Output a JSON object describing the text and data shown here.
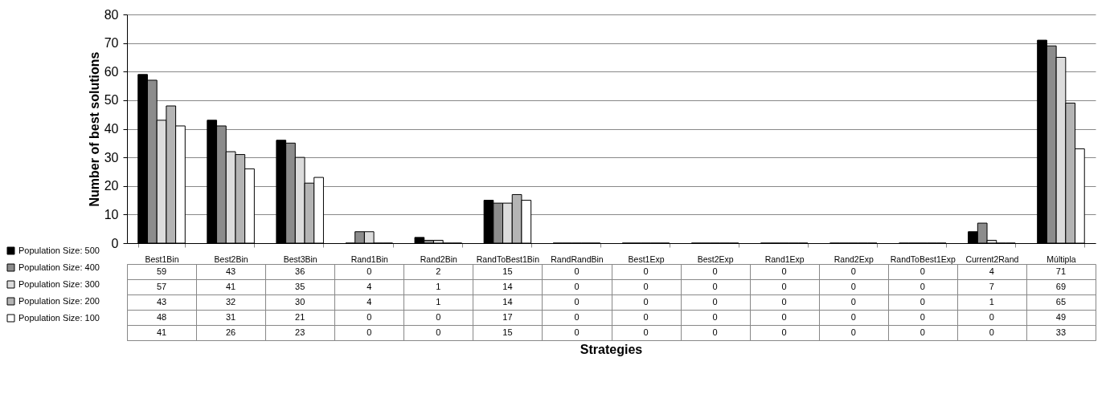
{
  "chart_data": {
    "type": "bar",
    "annotations": [
      "Strategies"
    ],
    "ylabel": "Number of best solutions",
    "categories": [
      "Best1Bin",
      "Best2Bin",
      "Best3Bin",
      "Rand1Bin",
      "Rand2Bin",
      "RandToBest1Bin",
      "RandRandBin",
      "Best1Exp",
      "Best2Exp",
      "Rand1Exp",
      "Rand2Exp",
      "RandToBest1Exp",
      "Current2Rand",
      "Múltipla"
    ],
    "series": [
      {
        "name": "Population Size: 500",
        "color": "#000000",
        "values": [
          59,
          43,
          36,
          0,
          2,
          15,
          0,
          0,
          0,
          0,
          0,
          0,
          4,
          71
        ]
      },
      {
        "name": "Population Size: 400",
        "color": "#8c8c8c",
        "values": [
          57,
          41,
          35,
          4,
          1,
          14,
          0,
          0,
          0,
          0,
          0,
          0,
          7,
          69
        ]
      },
      {
        "name": "Population Size: 300",
        "color": "#dcdcdc",
        "values": [
          43,
          32,
          30,
          4,
          1,
          14,
          0,
          0,
          0,
          0,
          0,
          0,
          1,
          65
        ]
      },
      {
        "name": "Population Size: 200",
        "color": "#b4b4b4",
        "values": [
          48,
          31,
          21,
          0,
          0,
          17,
          0,
          0,
          0,
          0,
          0,
          0,
          0,
          49
        ]
      },
      {
        "name": "Population Size: 100",
        "color": "#ffffff",
        "values": [
          41,
          26,
          23,
          0,
          0,
          15,
          0,
          0,
          0,
          0,
          0,
          0,
          0,
          33
        ]
      }
    ],
    "ylim": [
      0,
      80
    ],
    "yticks": [
      0,
      10,
      20,
      30,
      40,
      50,
      60,
      70,
      80
    ],
    "grid": "y",
    "legend": "bottom left",
    "data_labels": true
  }
}
